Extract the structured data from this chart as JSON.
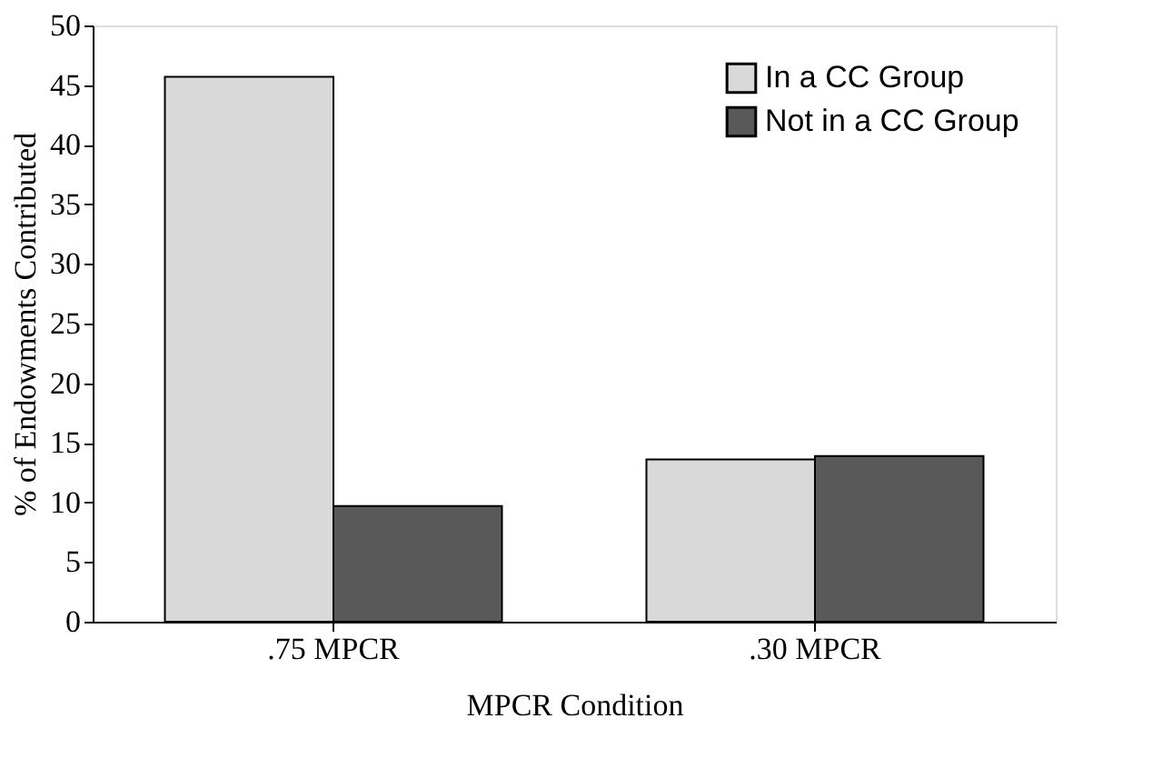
{
  "chart_data": {
    "type": "bar",
    "xlabel": "MPCR Condition",
    "ylabel": "% of Endowments Contributed",
    "categories": [
      ".75 MPCR",
      ".30 MPCR"
    ],
    "series": [
      {
        "name": "In a CC Group",
        "color": "#d9d9d9",
        "values": [
          45.7,
          13.6
        ]
      },
      {
        "name": "Not in a CC Group",
        "color": "#595959",
        "values": [
          9.7,
          13.9
        ]
      }
    ],
    "ylim": [
      0,
      50
    ],
    "yticks": [
      0,
      5,
      10,
      15,
      20,
      25,
      30,
      35,
      40,
      45,
      50
    ],
    "grid": false,
    "legend": "top right"
  }
}
